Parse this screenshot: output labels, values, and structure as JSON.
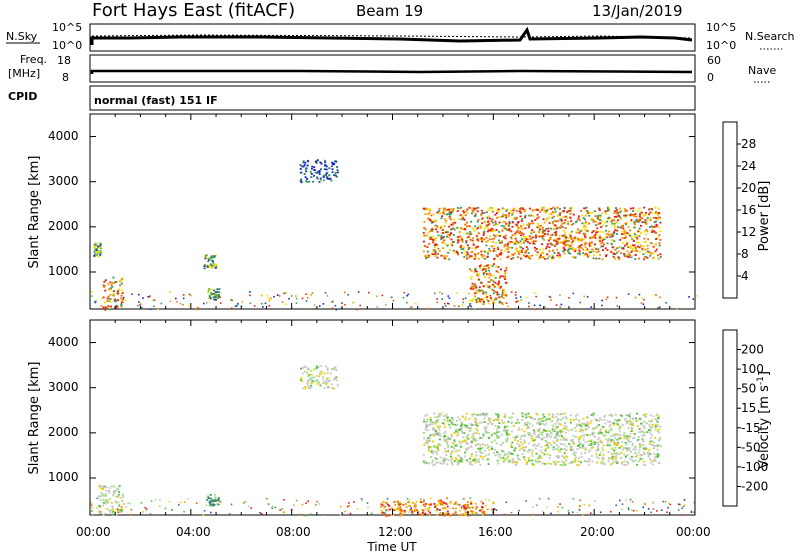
{
  "header": {
    "station": "Fort Hays East (fitACF)",
    "beam": "Beam 19",
    "date": "13/Jan/2019"
  },
  "top_panels": {
    "nsky_label": "N.Sky",
    "nsky_ticks": [
      "10^5",
      "10^0"
    ],
    "nsearch_label": "N.Search",
    "nsearch_ticks": [
      "10^5",
      "10^0"
    ],
    "freq_label_1": "Freq.",
    "freq_label_2": "[MHz]",
    "freq_ticks": [
      "18",
      "8"
    ],
    "nave_label": "Nave",
    "nave_ticks": [
      "60",
      "0"
    ],
    "cpid_label": "CPID",
    "cpid_text": "normal (fast) 151 IF"
  },
  "panels": {
    "ylabel": "Slant Range [km]",
    "yticks": [
      "4000",
      "3000",
      "2000",
      "1000"
    ],
    "xticks": [
      "00:00",
      "04:00",
      "08:00",
      "12:00",
      "16:00",
      "20:00",
      "00:00"
    ],
    "xlabel": "Time UT"
  },
  "colorbars": {
    "power": {
      "label": "Power [dB]",
      "ticks": [
        "28",
        "24",
        "20",
        "16",
        "12",
        "8",
        "4"
      ],
      "colors": [
        "#0a1ee6",
        "#1d3c9e",
        "#2f6b6f",
        "#3a9a63",
        "#7ac943",
        "#f2e200",
        "#f5a300",
        "#f36b00",
        "#ea2a00",
        "#e31a1c"
      ]
    },
    "velocity": {
      "label": "Velocity [m s",
      "label_sup": "-1",
      "label_end": "]",
      "ticks": [
        "200",
        "100",
        "50",
        "15",
        "-15",
        "-50",
        "-100",
        "-200"
      ],
      "colors": [
        "#1f3fb0",
        "#2e6ca6",
        "#3a8a5c",
        "#4fbe3a",
        "#99e07a",
        "#c8c8c8",
        "#f2d000",
        "#f59a00",
        "#f06400",
        "#e31a1c"
      ]
    }
  },
  "chart_data": [
    {
      "type": "heatmap",
      "title": "Power",
      "xlabel": "Time UT",
      "ylabel": "Slant Range [km]",
      "xlim": [
        0,
        24
      ],
      "ylim": [
        180,
        4500
      ],
      "colorbar_label": "Power [dB]",
      "regions": [
        {
          "t": [
            0.5,
            1.3
          ],
          "r": [
            180,
            900
          ],
          "level": "high"
        },
        {
          "t": [
            0.1,
            0.4
          ],
          "r": [
            1350,
            1650
          ],
          "level": "mid"
        },
        {
          "t": [
            4.5,
            5.0
          ],
          "r": [
            1100,
            1400
          ],
          "level": "mid"
        },
        {
          "t": [
            4.6,
            5.1
          ],
          "r": [
            400,
            650
          ],
          "level": "mid"
        },
        {
          "t": [
            8.3,
            9.8
          ],
          "r": [
            3000,
            3500
          ],
          "level": "low"
        },
        {
          "t": [
            13.2,
            22.6
          ],
          "r": [
            1300,
            2450
          ],
          "level": "high"
        },
        {
          "t": [
            15.0,
            16.5
          ],
          "r": [
            300,
            1200
          ],
          "level": "high"
        }
      ]
    },
    {
      "type": "heatmap",
      "title": "Velocity",
      "xlabel": "Time UT",
      "ylabel": "Slant Range [km]",
      "xlim": [
        0,
        24
      ],
      "ylim": [
        180,
        4500
      ],
      "colorbar_label": "Velocity [m s-1]",
      "regions": [
        {
          "t": [
            0.3,
            1.3
          ],
          "r": [
            180,
            850
          ],
          "level": "near-zero"
        },
        {
          "t": [
            4.6,
            5.1
          ],
          "r": [
            400,
            650
          ],
          "level": "positive"
        },
        {
          "t": [
            8.3,
            9.8
          ],
          "r": [
            3000,
            3500
          ],
          "level": "near-zero"
        },
        {
          "t": [
            13.2,
            22.6
          ],
          "r": [
            1300,
            2450
          ],
          "level": "near-zero"
        },
        {
          "t": [
            11.5,
            16.0
          ],
          "r": [
            180,
            500
          ],
          "level": "negative"
        }
      ]
    }
  ]
}
